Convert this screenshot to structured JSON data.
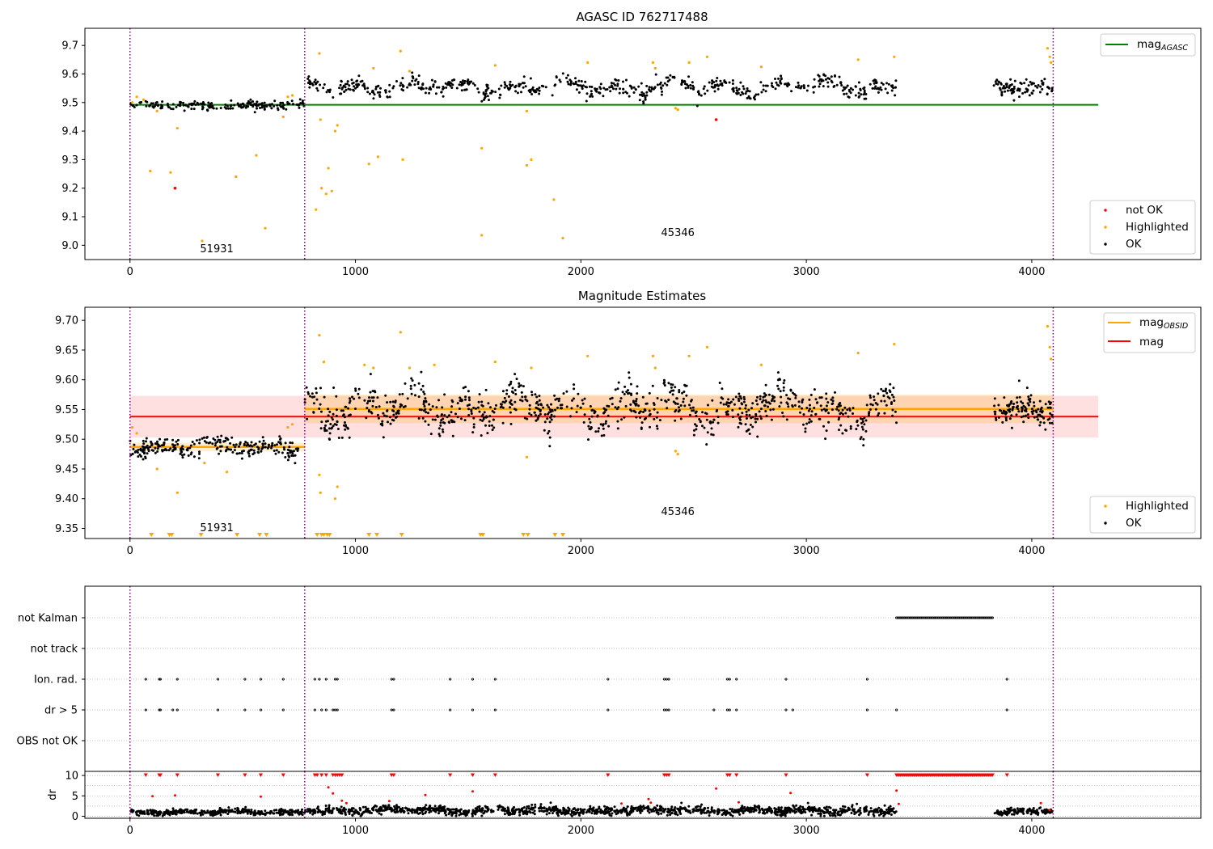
{
  "figure": {
    "x_ticks": [
      "0",
      "1000",
      "2000",
      "3000",
      "4000"
    ]
  },
  "chart_data": [
    {
      "type": "scatter",
      "title": "AGASC ID 762717488",
      "xlim": [
        -200,
        4750
      ],
      "ylim": [
        8.95,
        9.76
      ],
      "y_ticks": [
        "9.0",
        "9.1",
        "9.2",
        "9.3",
        "9.4",
        "9.5",
        "9.6",
        "9.7"
      ],
      "obsid_boundaries": [
        0,
        775,
        4095
      ],
      "obsid_labels": [
        {
          "text": "51931",
          "x": 385
        },
        {
          "text": "45346",
          "x": 2430
        }
      ],
      "lines": [
        {
          "name": "mag_AGASC",
          "value": 9.492,
          "color": "#008000",
          "x": [
            0,
            4295
          ]
        }
      ],
      "segments": [
        {
          "x": [
            0,
            775
          ],
          "level": 9.49,
          "amp": 0.008,
          "noise": 0.007,
          "n": 190
        },
        {
          "x": [
            775,
            3400
          ],
          "level": 9.555,
          "amp": 0.03,
          "noise": 0.013,
          "n": 640
        },
        {
          "x": [
            3830,
            4095
          ],
          "level": 9.55,
          "amp": 0.01,
          "noise": 0.01,
          "n": 90
        }
      ],
      "highlighted": [
        [
          10,
          9.5
        ],
        [
          30,
          9.52
        ],
        [
          60,
          9.51
        ],
        [
          90,
          9.26
        ],
        [
          120,
          9.47
        ],
        [
          180,
          9.255
        ],
        [
          200,
          9.2
        ],
        [
          210,
          9.41
        ],
        [
          320,
          9.015
        ],
        [
          470,
          9.24
        ],
        [
          560,
          9.315
        ],
        [
          600,
          9.06
        ],
        [
          680,
          9.45
        ],
        [
          700,
          9.52
        ],
        [
          720,
          9.525
        ],
        [
          825,
          9.125
        ],
        [
          840,
          9.672
        ],
        [
          845,
          9.44
        ],
        [
          850,
          9.2
        ],
        [
          870,
          9.18
        ],
        [
          880,
          9.27
        ],
        [
          895,
          9.19
        ],
        [
          910,
          9.4
        ],
        [
          920,
          9.42
        ],
        [
          1060,
          9.285
        ],
        [
          1080,
          9.62
        ],
        [
          1100,
          9.31
        ],
        [
          1200,
          9.68
        ],
        [
          1210,
          9.3
        ],
        [
          1240,
          9.61
        ],
        [
          1560,
          9.34
        ],
        [
          1560,
          9.035
        ],
        [
          1620,
          9.63
        ],
        [
          1760,
          9.28
        ],
        [
          1780,
          9.3
        ],
        [
          1760,
          9.47
        ],
        [
          1880,
          9.16
        ],
        [
          1920,
          9.025
        ],
        [
          2030,
          9.64
        ],
        [
          2320,
          9.64
        ],
        [
          2330,
          9.62
        ],
        [
          2420,
          9.48
        ],
        [
          2430,
          9.475
        ],
        [
          2480,
          9.64
        ],
        [
          2560,
          9.66
        ],
        [
          2800,
          9.625
        ],
        [
          3230,
          9.65
        ],
        [
          3390,
          9.66
        ],
        [
          4070,
          9.69
        ],
        [
          4080,
          9.66
        ],
        [
          4085,
          9.64
        ]
      ],
      "not_ok": [
        [
          200,
          9.2
        ],
        [
          2600,
          9.44
        ]
      ],
      "series_names": [
        "not OK",
        "Highlighted",
        "OK"
      ],
      "legend_top": [
        "mag_AGASC"
      ],
      "legend_bottom": [
        "not OK",
        "Highlighted",
        "OK"
      ]
    },
    {
      "type": "scatter",
      "title": "Magnitude Estimates",
      "xlim": [
        -200,
        4750
      ],
      "ylim": [
        9.333,
        9.722
      ],
      "y_ticks": [
        "9.35",
        "9.40",
        "9.45",
        "9.50",
        "9.55",
        "9.60",
        "9.65",
        "9.70"
      ],
      "obsid_boundaries": [
        0,
        775,
        4095
      ],
      "obsid_labels": [
        {
          "text": "51931",
          "x": 385
        },
        {
          "text": "45346",
          "x": 2430
        }
      ],
      "mag": {
        "value": 9.538,
        "band": [
          9.503,
          9.573
        ],
        "x": [
          0,
          4295
        ],
        "color": "#ff0000"
      },
      "mag_obsid": [
        {
          "x": [
            0,
            775
          ],
          "value": 9.487,
          "band": [
            9.48,
            9.494
          ]
        },
        {
          "x": [
            775,
            4095
          ],
          "value": 9.551,
          "band": [
            9.527,
            9.575
          ]
        }
      ],
      "segments": [
        {
          "x": [
            0,
            775
          ],
          "level": 9.487,
          "amp": 0.008,
          "noise": 0.008,
          "n": 260
        },
        {
          "x": [
            775,
            3400
          ],
          "level": 9.553,
          "amp": 0.03,
          "noise": 0.016,
          "n": 900
        },
        {
          "x": [
            3830,
            4095
          ],
          "level": 9.548,
          "amp": 0.01,
          "noise": 0.012,
          "n": 120
        }
      ],
      "highlighted": [
        [
          10,
          9.52
        ],
        [
          30,
          9.51
        ],
        [
          120,
          9.45
        ],
        [
          210,
          9.41
        ],
        [
          330,
          9.46
        ],
        [
          430,
          9.445
        ],
        [
          700,
          9.52
        ],
        [
          720,
          9.525
        ],
        [
          840,
          9.44
        ],
        [
          840,
          9.675
        ],
        [
          845,
          9.41
        ],
        [
          860,
          9.63
        ],
        [
          910,
          9.4
        ],
        [
          920,
          9.42
        ],
        [
          1040,
          9.625
        ],
        [
          1080,
          9.62
        ],
        [
          1200,
          9.68
        ],
        [
          1240,
          9.62
        ],
        [
          1350,
          9.625
        ],
        [
          1620,
          9.63
        ],
        [
          1760,
          9.47
        ],
        [
          1780,
          9.62
        ],
        [
          2030,
          9.64
        ],
        [
          2320,
          9.64
        ],
        [
          2330,
          9.62
        ],
        [
          2420,
          9.48
        ],
        [
          2430,
          9.475
        ],
        [
          2480,
          9.64
        ],
        [
          2560,
          9.655
        ],
        [
          2800,
          9.625
        ],
        [
          3230,
          9.645
        ],
        [
          3390,
          9.66
        ],
        [
          4070,
          9.69
        ],
        [
          4080,
          9.655
        ],
        [
          4085,
          9.635
        ]
      ],
      "below_range_markers": [
        95,
        175,
        185,
        315,
        475,
        575,
        605,
        830,
        850,
        860,
        875,
        885,
        1060,
        1095,
        1205,
        1555,
        1565,
        1745,
        1765,
        1885,
        1920
      ],
      "series_names": [
        "Highlighted",
        "OK"
      ],
      "legend_top": [
        "mag_OBSID",
        "mag"
      ],
      "legend_bottom": [
        "Highlighted",
        "OK"
      ]
    },
    {
      "type": "scatter",
      "flags": [
        "not Kalman",
        "not track",
        "Ion. rad.",
        "dr > 5",
        "OBS not OK"
      ],
      "flag_points": {
        "not Kalman": {
          "ranges": [
            [
              3400,
              3830
            ]
          ]
        },
        "not track": {
          "points": []
        },
        "Ion. rad.": {
          "points": [
            70,
            130,
            135,
            210,
            390,
            510,
            580,
            680,
            820,
            840,
            870,
            910,
            920,
            1160,
            1170,
            1420,
            1520,
            1620,
            2120,
            2370,
            2380,
            2390,
            2650,
            2660,
            2690,
            2910,
            3270,
            3890
          ]
        },
        "dr > 5": {
          "points": [
            70,
            130,
            135,
            190,
            210,
            390,
            510,
            580,
            680,
            820,
            850,
            870,
            900,
            910,
            920,
            1160,
            1170,
            1420,
            1520,
            1620,
            2120,
            2370,
            2380,
            2390,
            2590,
            2650,
            2660,
            2690,
            2910,
            2940,
            3270,
            3400,
            3890
          ]
        },
        "OBS not OK": {
          "points": []
        }
      },
      "xlim": [
        -200,
        4750
      ]
    },
    {
      "type": "scatter",
      "ylabel": "dr",
      "xlim": [
        -200,
        4750
      ],
      "ylim": [
        -0.5,
        11
      ],
      "y_ticks": [
        "0",
        "5",
        "10"
      ],
      "saturation": 10,
      "segments": [
        {
          "x": [
            0,
            775
          ],
          "level": 1.0,
          "amp": 0.3,
          "noise": 0.35,
          "n": 380
        },
        {
          "x": [
            775,
            3400
          ],
          "level": 1.4,
          "amp": 0.5,
          "noise": 0.5,
          "n": 1300
        },
        {
          "x": [
            3830,
            4095
          ],
          "level": 1.2,
          "amp": 0.4,
          "noise": 0.4,
          "n": 130
        }
      ],
      "red_low": [
        [
          100,
          4.9
        ],
        [
          200,
          5.1
        ],
        [
          580,
          4.8
        ],
        [
          880,
          7.1
        ],
        [
          900,
          5.6
        ],
        [
          940,
          3.8
        ],
        [
          960,
          3.2
        ],
        [
          1150,
          3.7
        ],
        [
          1310,
          5.2
        ],
        [
          1520,
          6.1
        ],
        [
          2180,
          3.1
        ],
        [
          2300,
          4.2
        ],
        [
          2310,
          3.3
        ],
        [
          2600,
          6.8
        ],
        [
          2700,
          3.4
        ],
        [
          2930,
          5.7
        ],
        [
          3400,
          6.3
        ],
        [
          3410,
          3.0
        ],
        [
          4040,
          3.2
        ],
        [
          4080,
          1.5
        ]
      ],
      "red_saturated_points": [
        70,
        130,
        135,
        210,
        390,
        510,
        580,
        680,
        820,
        830,
        850,
        870,
        900,
        910,
        920,
        930,
        940,
        1160,
        1170,
        1420,
        1520,
        1620,
        2120,
        2370,
        2380,
        2390,
        2650,
        2660,
        2690,
        2910,
        3270,
        3890
      ],
      "red_saturated_ranges": [
        [
          3400,
          3830
        ]
      ]
    }
  ]
}
